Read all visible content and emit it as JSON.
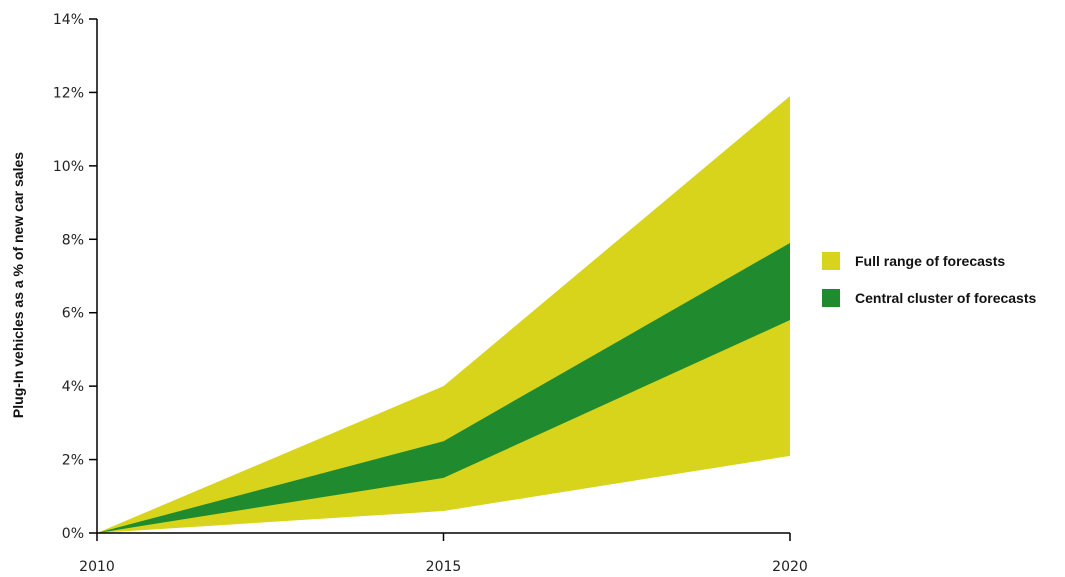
{
  "chart_data": {
    "type": "area",
    "xlabel": "",
    "ylabel": "Plug-In vehicles as a % of new car sales",
    "x": [
      2010,
      2015,
      2020
    ],
    "x_ticks": [
      2010,
      2015,
      2020
    ],
    "x_tick_labels": [
      "2010",
      "2015",
      "2020"
    ],
    "ylim": [
      0,
      14
    ],
    "y_ticks": [
      0,
      2,
      4,
      6,
      8,
      10,
      12,
      14
    ],
    "y_tick_labels": [
      "0%",
      "2%",
      "4%",
      "6%",
      "8%",
      "10%",
      "12%",
      "14%"
    ],
    "grid": false,
    "legend_position": "right",
    "series": [
      {
        "name": "Full range of forecasts",
        "color": "#d7d41b",
        "lower": [
          0,
          0.6,
          2.1
        ],
        "upper": [
          0,
          4.0,
          11.9
        ]
      },
      {
        "name": "Central cluster of forecasts",
        "color": "#1f8a2e",
        "lower": [
          0,
          1.5,
          5.8
        ],
        "upper": [
          0,
          2.5,
          7.9
        ]
      }
    ]
  }
}
